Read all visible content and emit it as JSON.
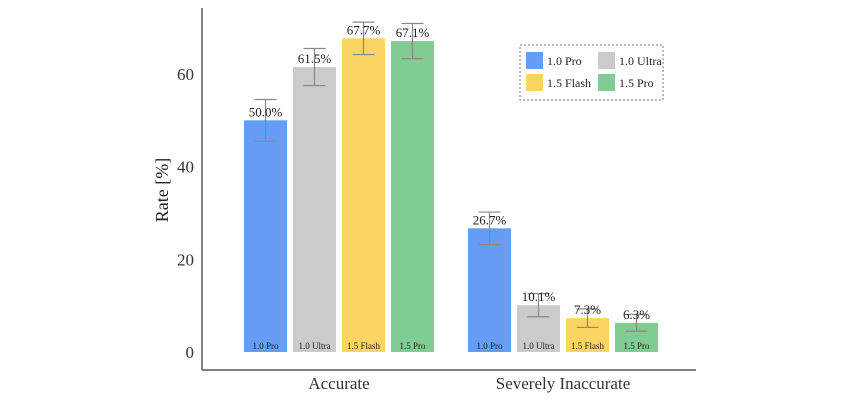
{
  "chart_data": {
    "type": "bar",
    "title": "",
    "xlabel": "",
    "ylabel": "Rate [%]",
    "ylim": [
      0,
      75
    ],
    "yticks": [
      0,
      20,
      40,
      60
    ],
    "categories": [
      "Accurate",
      "Severely Inaccurate"
    ],
    "series": [
      {
        "name": "1.0 Pro",
        "color": "#659df5",
        "values": [
          50.0,
          26.7
        ],
        "errors": [
          4.5,
          3.5
        ],
        "value_labels": [
          "50.0%",
          "26.7%"
        ],
        "bar_labels": [
          "1.0 Pro",
          "1.0 Pro"
        ]
      },
      {
        "name": "1.0 Ultra",
        "color": "#cbcbcb",
        "values": [
          61.5,
          10.1
        ],
        "errors": [
          4.0,
          2.5
        ],
        "value_labels": [
          "61.5%",
          "10.1%"
        ],
        "bar_labels": [
          "1.0 Ultra",
          "1.0 Ultra"
        ]
      },
      {
        "name": "1.5 Flash",
        "color": "#fcd464",
        "values": [
          67.7,
          7.3
        ],
        "errors": [
          3.5,
          2.0
        ],
        "value_labels": [
          "67.7%",
          "7.3%"
        ],
        "bar_labels": [
          "1.5 Flash",
          "1.5 Flash"
        ]
      },
      {
        "name": "1.5 Pro",
        "color": "#80cc93",
        "values": [
          67.1,
          6.3
        ],
        "errors": [
          3.8,
          1.8
        ],
        "value_labels": [
          "67.1%",
          "6.3%"
        ],
        "bar_labels": [
          "1.5 Pro",
          "1.5 Pro"
        ]
      }
    ],
    "legend": {
      "position": "top-right",
      "columns": 2
    },
    "grid": false
  }
}
